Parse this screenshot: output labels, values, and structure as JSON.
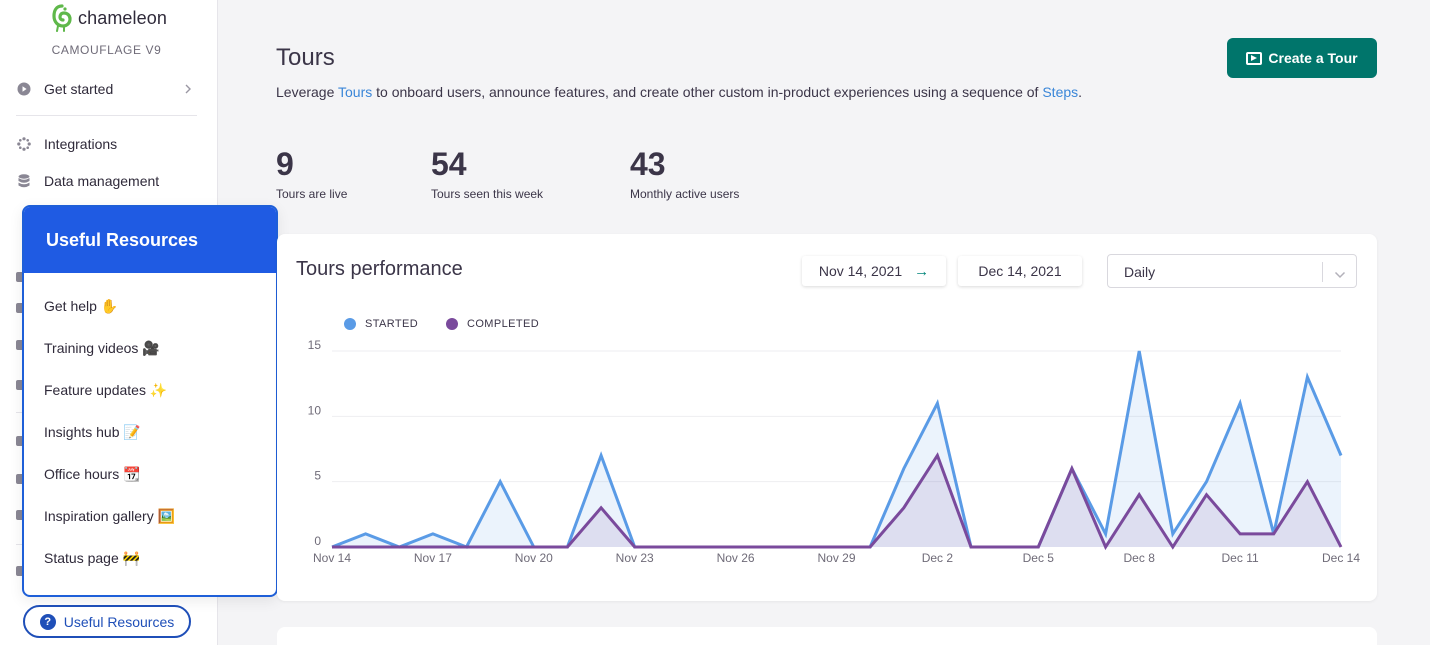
{
  "brand": {
    "name": "chameleon",
    "version": "CAMOUFLAGE V9"
  },
  "sidebar": {
    "items": [
      {
        "label": "Get started",
        "icon": "play-circle-icon"
      },
      {
        "label": "Integrations",
        "icon": "integrations-icon"
      },
      {
        "label": "Data management",
        "icon": "database-icon"
      }
    ]
  },
  "resources": {
    "title": "Useful Resources",
    "items": [
      "Get help ✋",
      "Training videos 🎥",
      "Feature updates ✨",
      "Insights hub 📝",
      "Office hours 📆",
      "Inspiration gallery 🖼️",
      "Status page 🚧"
    ],
    "button_label": "Useful Resources"
  },
  "page": {
    "title": "Tours",
    "desc_before": "Leverage ",
    "desc_link1": "Tours",
    "desc_middle": " to onboard users, announce features, and create other custom in-product experiences using a sequence of ",
    "desc_link2": "Steps",
    "desc_after": ".",
    "create_button": "Create a Tour"
  },
  "stats": [
    {
      "value": "9",
      "label": "Tours are live"
    },
    {
      "value": "54",
      "label": "Tours seen this week"
    },
    {
      "value": "43",
      "label": "Monthly active users"
    }
  ],
  "performance": {
    "title": "Tours performance",
    "start_date": "Nov 14, 2021",
    "end_date": "Dec 14, 2021",
    "granularity": "Daily"
  },
  "colors": {
    "accent": "#00756b",
    "resources": "#1f5be3",
    "started": "#5a9be6",
    "completed": "#7a4a9c"
  },
  "chart_data": {
    "type": "area",
    "x": [
      "Nov 14",
      "Nov 15",
      "Nov 16",
      "Nov 17",
      "Nov 18",
      "Nov 19",
      "Nov 20",
      "Nov 21",
      "Nov 22",
      "Nov 23",
      "Nov 24",
      "Nov 25",
      "Nov 26",
      "Nov 27",
      "Nov 28",
      "Nov 29",
      "Nov 30",
      "Dec 1",
      "Dec 2",
      "Dec 3",
      "Dec 4",
      "Dec 5",
      "Dec 6",
      "Dec 7",
      "Dec 8",
      "Dec 9",
      "Dec 10",
      "Dec 11",
      "Dec 12",
      "Dec 13",
      "Dec 14"
    ],
    "tick_labels": [
      "Nov 14",
      "Nov 17",
      "Nov 20",
      "Nov 23",
      "Nov 26",
      "Nov 29",
      "Dec 2",
      "Dec 5",
      "Dec 8",
      "Dec 11",
      "Dec 14"
    ],
    "y_ticks": [
      0,
      5,
      10,
      15
    ],
    "ylim": [
      0,
      15
    ],
    "legend_position": "top-left",
    "grid": true,
    "series": [
      {
        "name": "STARTED",
        "values": [
          0,
          1,
          0,
          1,
          0,
          5,
          0,
          0,
          7,
          0,
          0,
          0,
          0,
          0,
          0,
          0,
          0,
          6,
          11,
          0,
          0,
          0,
          6,
          1,
          15,
          1,
          5,
          11,
          1,
          13,
          7
        ]
      },
      {
        "name": "COMPLETED",
        "values": [
          0,
          0,
          0,
          0,
          0,
          0,
          0,
          0,
          3,
          0,
          0,
          0,
          0,
          0,
          0,
          0,
          0,
          3,
          7,
          0,
          0,
          0,
          6,
          0,
          4,
          0,
          4,
          1,
          1,
          5,
          0
        ]
      }
    ]
  }
}
